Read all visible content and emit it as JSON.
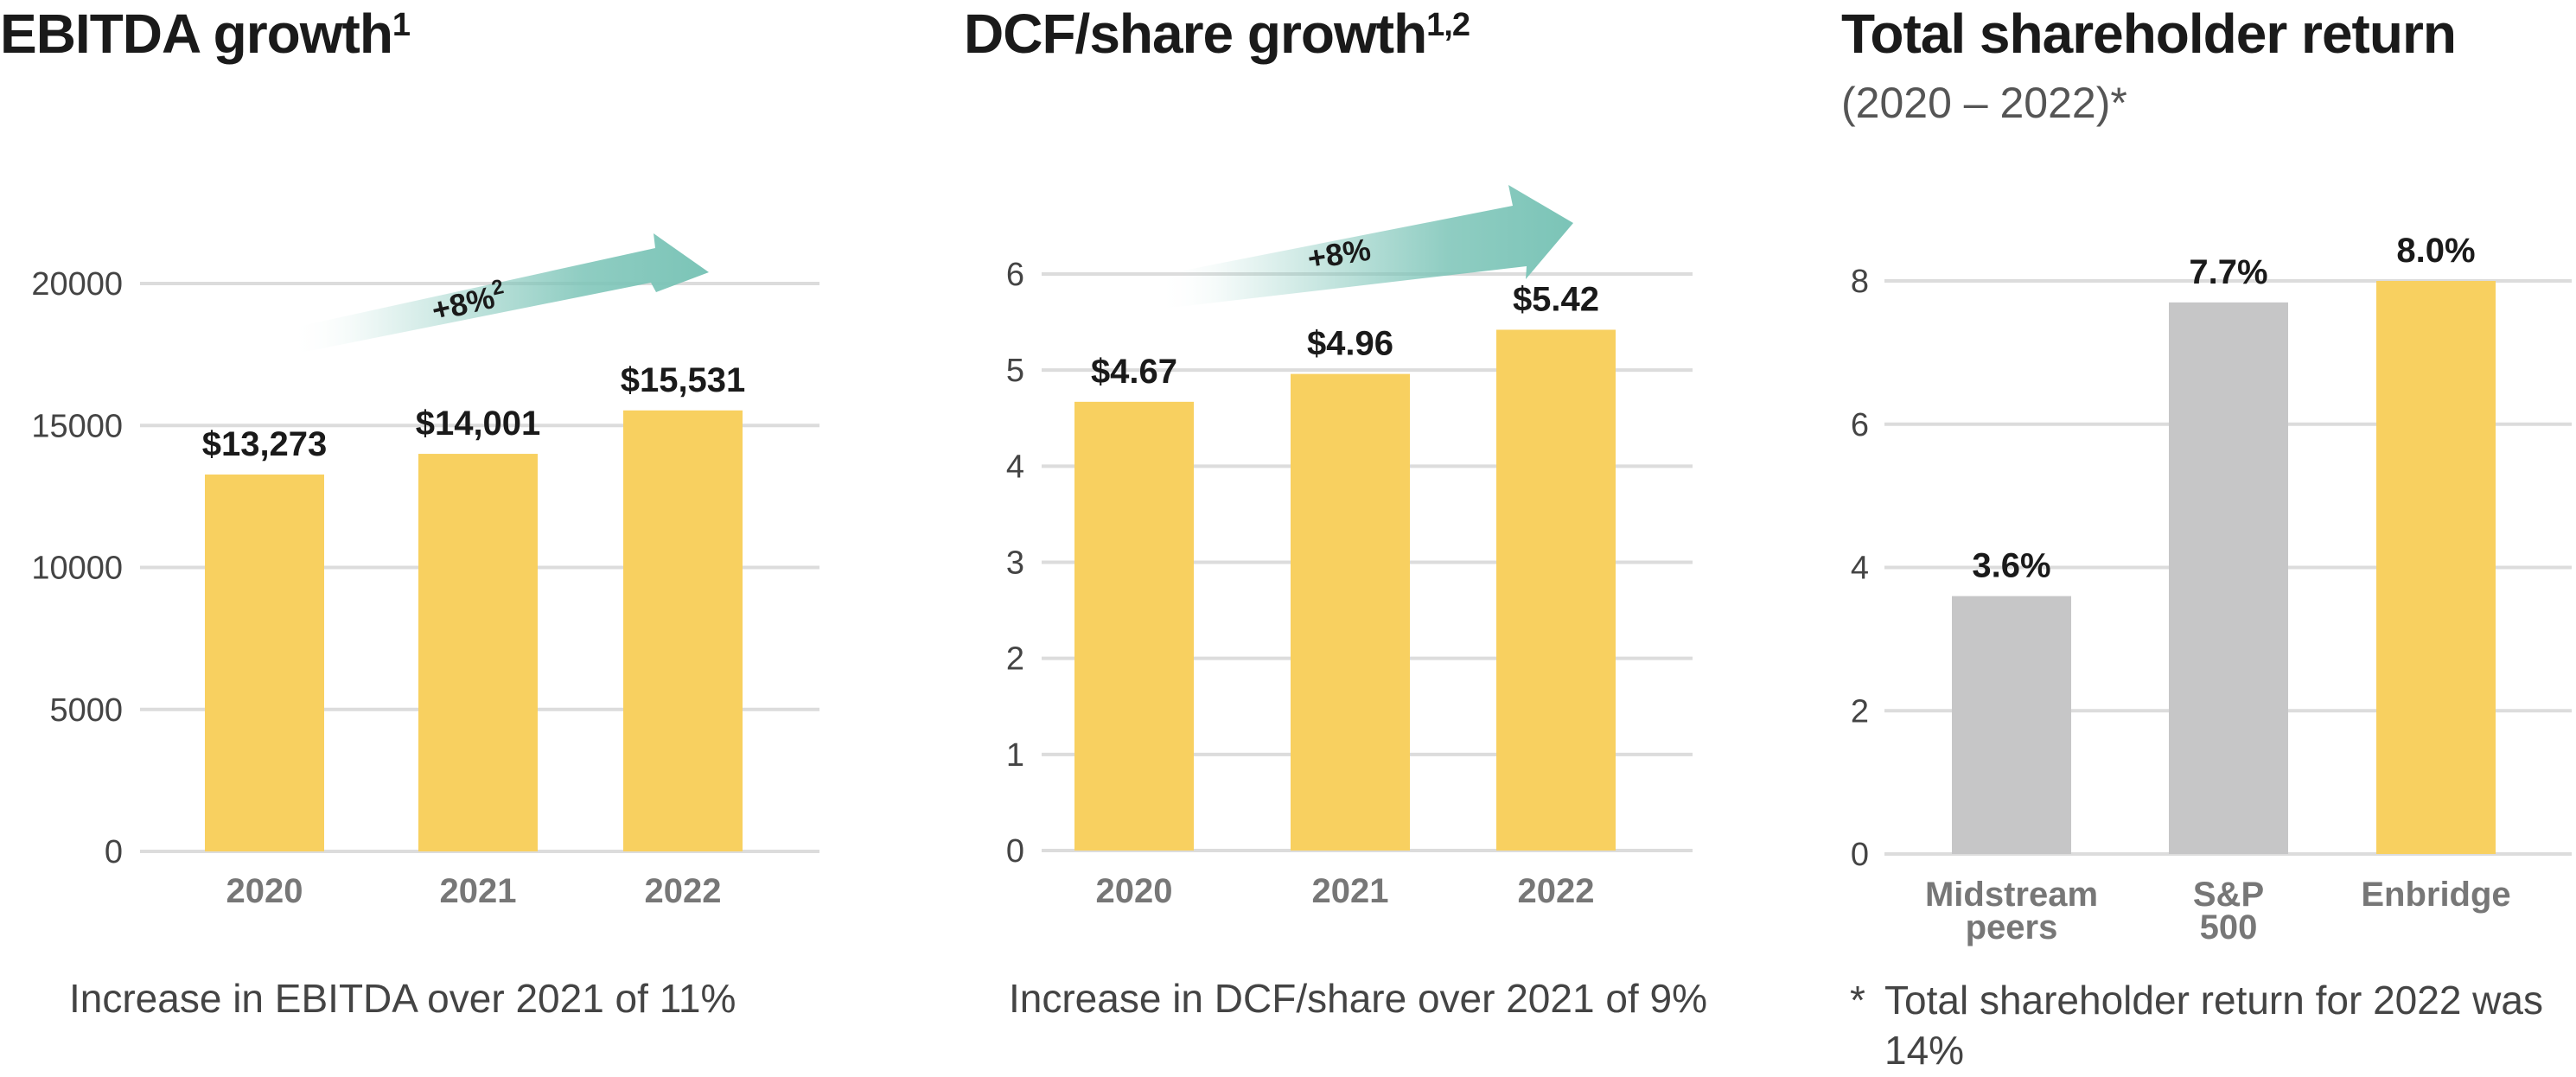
{
  "colors": {
    "highlight": "#F8D060",
    "peer": "#C6C6C7",
    "grid": "#DCDCDC",
    "arrow": "#7BC4B7"
  },
  "panels": [
    {
      "title": "EBITDA growth",
      "title_sup": "1",
      "note": "Increase in EBITDA over 2021 of 11%",
      "arrow": {
        "label": "+8%",
        "sup": "2"
      }
    },
    {
      "title": "DCF/share growth",
      "title_sup": "1,2",
      "note": "Increase in DCF/share over 2021 of 9%",
      "arrow": {
        "label": "+8%"
      }
    },
    {
      "title": "Total shareholder return",
      "subtitle": "(2020 – 2022)*",
      "note_marker": "*",
      "note": "Total shareholder return for 2022 was 14%"
    }
  ],
  "chart_data": [
    {
      "type": "bar",
      "title": "EBITDA growth",
      "categories": [
        "2020",
        "2021",
        "2022"
      ],
      "values": [
        13273,
        14001,
        15531
      ],
      "data_labels": [
        "$13,273",
        "$14,001",
        "$15,531"
      ],
      "ylim": [
        0,
        20000
      ],
      "yticks": [
        0,
        5000,
        10000,
        15000,
        20000
      ],
      "grid": true
    },
    {
      "type": "bar",
      "title": "DCF/share growth",
      "categories": [
        "2020",
        "2021",
        "2022"
      ],
      "values": [
        4.67,
        4.96,
        5.42
      ],
      "data_labels": [
        "$4.67",
        "$4.96",
        "$5.42"
      ],
      "ylim": [
        0,
        6
      ],
      "yticks": [
        0,
        1,
        2,
        3,
        4,
        5,
        6
      ],
      "grid": true
    },
    {
      "type": "bar",
      "title": "Total shareholder return (2020 – 2022)",
      "categories": [
        [
          "Midstream",
          "peers"
        ],
        [
          "S&P",
          "500"
        ],
        [
          "Enbridge"
        ]
      ],
      "values": [
        3.6,
        7.7,
        8.0
      ],
      "data_labels": [
        "3.6%",
        "7.7%",
        "8.0%"
      ],
      "ylim": [
        0,
        8
      ],
      "yticks": [
        0,
        2,
        4,
        6,
        8
      ],
      "grid": true
    }
  ]
}
